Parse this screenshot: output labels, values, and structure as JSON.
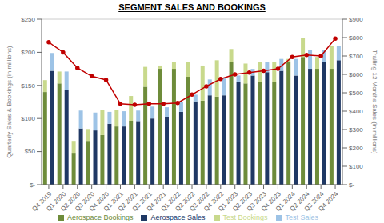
{
  "chart_data": {
    "type": "bar",
    "title": "SEGMENT SALES AND BOOKINGS",
    "categories": [
      "Q4 2019",
      "Q1 2020",
      "Q2 2020",
      "Q3 2020",
      "Q4 2020",
      "Q1 2021",
      "Q2 2021",
      "Q3 2021",
      "Q4 2021",
      "Q1 2022",
      "Q2 2022",
      "Q3 2022",
      "Q4 2022",
      "Q1 2023",
      "Q2 2023",
      "Q3 2023",
      "Q4 2023",
      "Q1 2024",
      "Q2 2024",
      "Q3 2024",
      "Q4 2024"
    ],
    "series": [
      {
        "name": "Aerospace Bookings",
        "color": "#6e8c3a",
        "values": [
          140,
          153,
          47,
          65,
          75,
          88,
          96,
          148,
          175,
          175,
          163,
          127,
          133,
          185,
          153,
          155,
          155,
          185,
          193,
          175,
          175
        ]
      },
      {
        "name": "Test Bookings",
        "color": "#c8d98c",
        "stacked": true,
        "values": [
          18,
          18,
          18,
          18,
          38,
          25,
          38,
          30,
          5,
          10,
          22,
          53,
          55,
          20,
          30,
          30,
          30,
          5,
          28,
          18,
          35
        ]
      },
      {
        "name": "Aerospace Sales",
        "color": "#1f3864",
        "values": [
          172,
          143,
          85,
          82,
          92,
          88,
          95,
          100,
          102,
          110,
          126,
          135,
          135,
          155,
          165,
          170,
          172,
          165,
          175,
          185,
          188
        ]
      },
      {
        "name": "Test Sales",
        "color": "#9dc3e6",
        "stacked": true,
        "values": [
          27,
          28,
          27,
          27,
          18,
          23,
          17,
          18,
          15,
          15,
          10,
          24,
          26,
          10,
          10,
          15,
          18,
          25,
          28,
          18,
          22
        ]
      },
      {
        "type": "line",
        "axis": "y2",
        "color": "#c00000",
        "marker": "circle",
        "values": [
          775,
          720,
          635,
          590,
          570,
          440,
          435,
          440,
          440,
          445,
          490,
          535,
          575,
          600,
          610,
          620,
          630,
          695,
          705,
          700,
          795
        ]
      }
    ],
    "y_label": "Quarterly Sales & Bookings (in millions)",
    "y2_label": "Trailing 12 Months Sales (in millions)",
    "ylim": [
      0,
      250
    ],
    "yticks": [
      {
        "value": 0,
        "label": "$-"
      },
      {
        "value": 50,
        "label": "$50"
      },
      {
        "value": 100,
        "label": "$100"
      },
      {
        "value": 150,
        "label": "$150"
      },
      {
        "value": 200,
        "label": "$200"
      },
      {
        "value": 250,
        "label": "$250"
      }
    ],
    "y2lim": [
      0,
      900
    ],
    "y2ticks": [
      {
        "value": 0,
        "label": "$-"
      },
      {
        "value": 100,
        "label": "$100"
      },
      {
        "value": 200,
        "label": "$200"
      },
      {
        "value": 300,
        "label": "$300"
      },
      {
        "value": 400,
        "label": "$400"
      },
      {
        "value": 500,
        "label": "$500"
      },
      {
        "value": 600,
        "label": "$600"
      },
      {
        "value": 700,
        "label": "$700"
      },
      {
        "value": 800,
        "label": "$800"
      },
      {
        "value": 900,
        "label": "$900"
      }
    ],
    "grid": true,
    "legend": "bottom"
  }
}
